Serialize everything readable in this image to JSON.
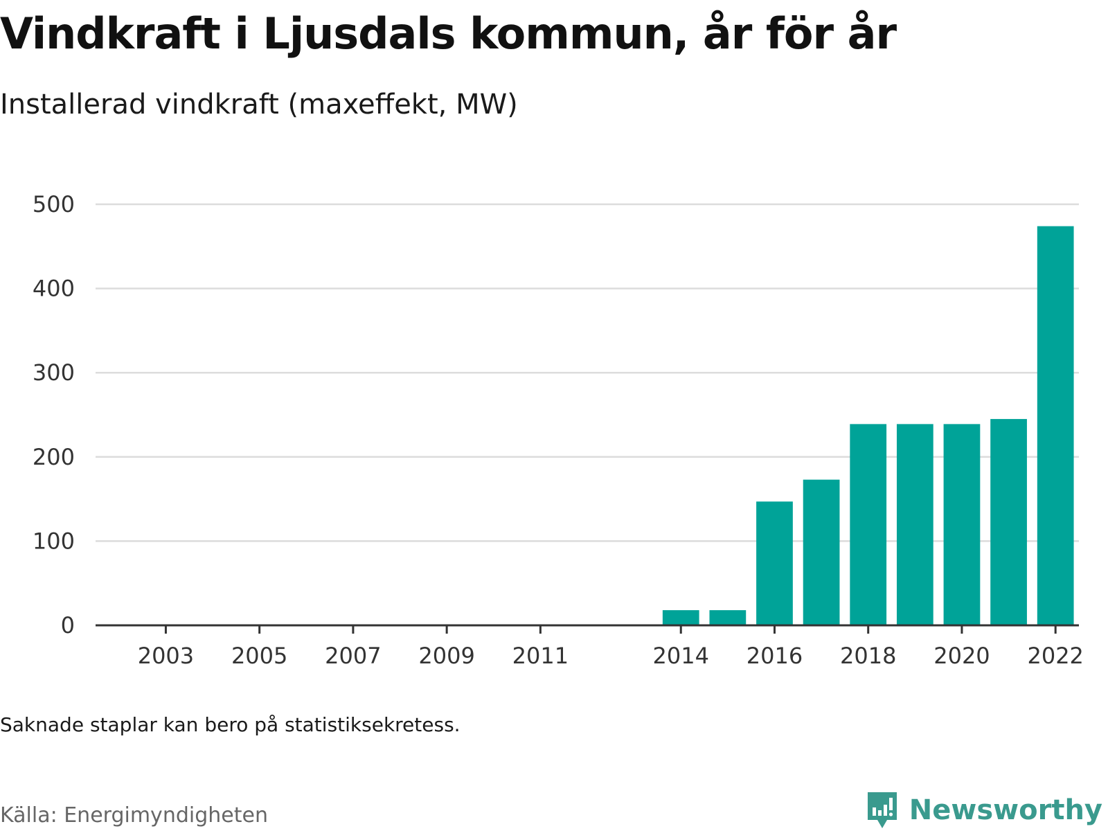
{
  "title": "Vindkraft i Ljusdals kommun, år för år",
  "subtitle": "Installerad vindkraft (maxeffekt, MW)",
  "note": "Saknade staplar kan bero på statistiksekretess.",
  "source": "Källa: Energimyndigheten",
  "brand": {
    "name": "Newsworthy",
    "icon": "newsworthy-logo-icon",
    "color": "#3a9a8e"
  },
  "chart_data": {
    "type": "bar",
    "title": "",
    "xlabel": "",
    "ylabel": "",
    "ylim": [
      0,
      500
    ],
    "y_ticks": [
      0,
      100,
      200,
      300,
      400,
      500
    ],
    "x_tick_labels": [
      "2003",
      "2005",
      "2007",
      "2009",
      "2011",
      "2014",
      "2016",
      "2018",
      "2020",
      "2022"
    ],
    "grid": true,
    "bar_color": "#00a398",
    "categories": [
      2002,
      2003,
      2004,
      2005,
      2006,
      2007,
      2008,
      2009,
      2010,
      2011,
      2012,
      2013,
      2014,
      2015,
      2016,
      2017,
      2018,
      2019,
      2020,
      2021,
      2022
    ],
    "values": [
      null,
      null,
      null,
      null,
      null,
      null,
      null,
      null,
      null,
      null,
      null,
      null,
      18,
      18,
      147,
      173,
      239,
      239,
      239,
      245,
      474
    ]
  }
}
